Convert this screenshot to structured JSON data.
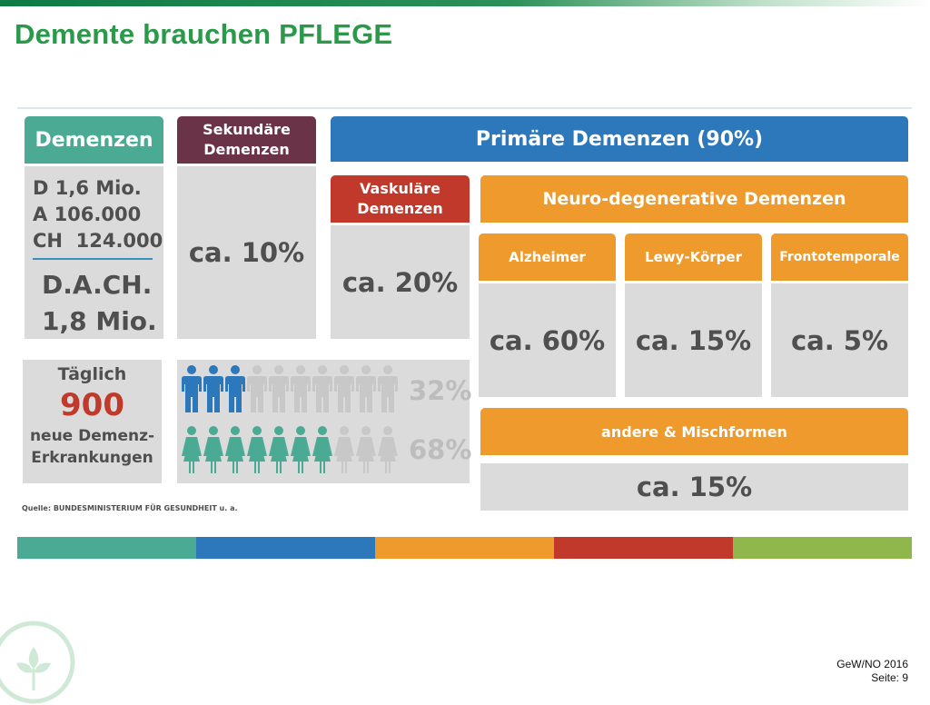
{
  "title": "Demente brauchen PFLEGE",
  "boxes": {
    "demenzen": "Demenzen",
    "sekundaer": "Sekundäre Demenzen",
    "primaer": "Primäre Demenzen (90%)",
    "vaskulaer": "Vaskuläre Demenzen",
    "neuro": "Neuro-degenerative Demenzen",
    "alzheimer": "Alzheimer",
    "lewy": "Lewy-Körper",
    "fronto": "Frontotemporale",
    "andere": "andere & Mischformen"
  },
  "values": {
    "sekundaer": "ca. 10%",
    "vaskulaer": "ca. 20%",
    "alzheimer": "ca. 60%",
    "lewy": "ca. 15%",
    "fronto": "ca. 5%",
    "andere": "ca. 15%"
  },
  "dach": {
    "d": "D 1,6 Mio.",
    "a": "A 106.000",
    "ch": "CH  124.000",
    "total_label": "D.A.CH.",
    "total_value": "1,8 Mio."
  },
  "daily": {
    "line1": "Täglich",
    "number": "900",
    "line2": "neue Demenz-",
    "line3": "Erkrankungen"
  },
  "gender": {
    "male_pct": "32%",
    "female_pct": "68%",
    "male_highlighted": 3,
    "male_total": 10,
    "female_highlighted": 7,
    "female_total": 10,
    "male_color": "#2d78bb",
    "female_color": "#4aaa93",
    "inactive_color": "#c8c8c8"
  },
  "source": "Quelle: BUNDESMINISTERIUM FÜR GESUNDHEIT u. a.",
  "strip_colors": [
    "#4aaa93",
    "#2d78bb",
    "#ef9a2c",
    "#c0392b",
    "#8fb74c"
  ],
  "footer": {
    "line1": "GeW/NO 2016",
    "line2": "Seite: 9"
  }
}
